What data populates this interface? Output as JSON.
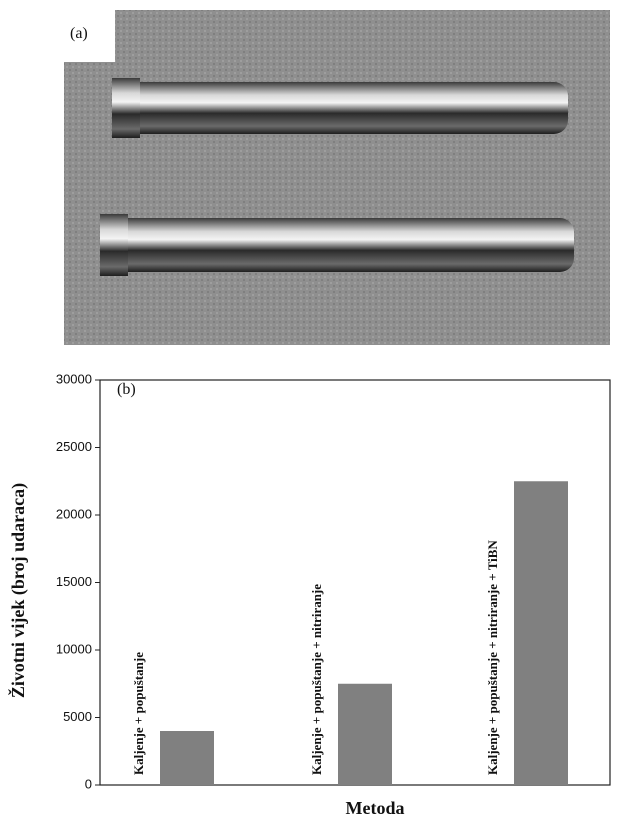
{
  "figure": {
    "panel_a_label": "(a)"
  },
  "chart_data": {
    "type": "bar",
    "panel_label": "(b)",
    "x_label": "Metoda",
    "y_label": "Životni vijek (broj udaraca)",
    "categories": [
      "Kaljenje + popuštanje",
      "Kaljenje + popuštanje + nitriranje",
      "Kaljenje + popuštanje + nitriranje + TiBN"
    ],
    "values": [
      4000,
      7500,
      22500
    ],
    "color": "#808080",
    "ylim": [
      0,
      30000
    ],
    "yticks": [
      0,
      5000,
      10000,
      15000,
      20000,
      25000,
      30000
    ]
  }
}
